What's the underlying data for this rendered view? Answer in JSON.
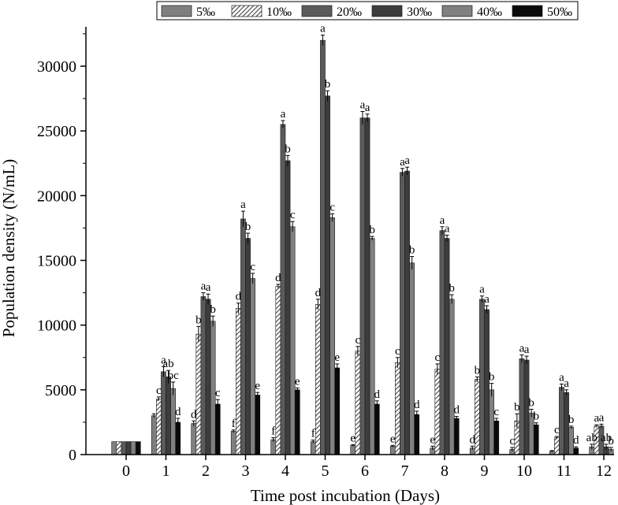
{
  "chart_data": {
    "type": "bar",
    "xlabel": "Time post incubation (Days)",
    "ylabel": "Population density (N/mL)",
    "ylim": [
      0,
      35000
    ],
    "yticks": [
      0,
      5000,
      10000,
      15000,
      20000,
      25000,
      30000
    ],
    "ytick_labels": [
      "0",
      "5000",
      "10000",
      "15000",
      "20000",
      "25000",
      "30000"
    ],
    "categories": [
      "0",
      "1",
      "2",
      "3",
      "4",
      "5",
      "6",
      "7",
      "8",
      "9",
      "10",
      "11",
      "12"
    ],
    "legend_position": "top",
    "series": [
      {
        "name": "5‰",
        "color": "#7f7f7f",
        "pattern": "solid",
        "values": [
          1000,
          3000,
          2400,
          1800,
          1150,
          1000,
          700,
          650,
          500,
          500,
          400,
          250,
          600
        ],
        "errors": [
          0,
          150,
          200,
          100,
          150,
          120,
          60,
          60,
          150,
          150,
          150,
          60,
          200
        ],
        "letters": [
          "",
          "",
          "d",
          "f",
          "f",
          "f",
          "e",
          "e",
          "e",
          "d",
          "c",
          "",
          "ab"
        ]
      },
      {
        "name": "10‰",
        "color": "#8c8c8c",
        "pattern": "hatch",
        "values": [
          1000,
          4300,
          9300,
          11300,
          13000,
          11600,
          8000,
          7100,
          6600,
          5800,
          2600,
          1300,
          2200
        ],
        "errors": [
          0,
          150,
          600,
          400,
          150,
          400,
          350,
          400,
          400,
          200,
          550,
          100,
          100
        ],
        "letters": [
          "",
          "c",
          "b",
          "d",
          "d",
          "d",
          "c",
          "c",
          "c",
          "b",
          "b",
          "c",
          "a"
        ]
      },
      {
        "name": "20‰",
        "color": "#5b5b5b",
        "pattern": "solid",
        "values": [
          1000,
          6400,
          12200,
          18200,
          25500,
          32000,
          26000,
          21800,
          17300,
          12000,
          7400,
          5200,
          2200
        ],
        "errors": [
          0,
          400,
          300,
          600,
          300,
          400,
          500,
          300,
          300,
          250,
          300,
          250,
          150
        ],
        "letters": [
          "",
          "a",
          "a",
          "a",
          "a",
          "a",
          "a",
          "a",
          "a",
          "a",
          "a",
          "a",
          "a"
        ]
      },
      {
        "name": "30‰",
        "color": "#3d3d3d",
        "pattern": "solid",
        "values": [
          1000,
          6000,
          12000,
          16700,
          22700,
          27700,
          26000,
          21900,
          16700,
          11200,
          7300,
          4800,
          600
        ],
        "errors": [
          0,
          500,
          400,
          400,
          400,
          400,
          300,
          300,
          250,
          300,
          300,
          200,
          200
        ],
        "letters": [
          "",
          "ab",
          "a",
          "b",
          "b",
          "b",
          "a",
          "a",
          "a",
          "a",
          "a",
          "a",
          "ab"
        ]
      },
      {
        "name": "40‰",
        "color": "#808080",
        "pattern": "solid",
        "values": [
          1000,
          5100,
          10300,
          13600,
          17600,
          18300,
          16700,
          14800,
          12000,
          5000,
          3200,
          2100,
          400
        ],
        "errors": [
          0,
          500,
          400,
          400,
          400,
          300,
          150,
          500,
          350,
          500,
          300,
          100,
          150
        ],
        "letters": [
          "",
          "bc",
          "b",
          "c",
          "c",
          "c",
          "b",
          "b",
          "b",
          "b",
          "b",
          "b",
          "b"
        ]
      },
      {
        "name": "50‰",
        "color": "#0a0a0a",
        "pattern": "solid",
        "values": [
          1000,
          2500,
          3900,
          4600,
          5000,
          6700,
          3900,
          3100,
          2800,
          2600,
          2300,
          500,
          0
        ],
        "errors": [
          0,
          300,
          350,
          200,
          150,
          300,
          250,
          250,
          150,
          200,
          150,
          100,
          0
        ],
        "letters": [
          "",
          "d",
          "c",
          "e",
          "e",
          "e",
          "d",
          "d",
          "d",
          "c",
          "b",
          "d",
          ""
        ]
      }
    ]
  }
}
